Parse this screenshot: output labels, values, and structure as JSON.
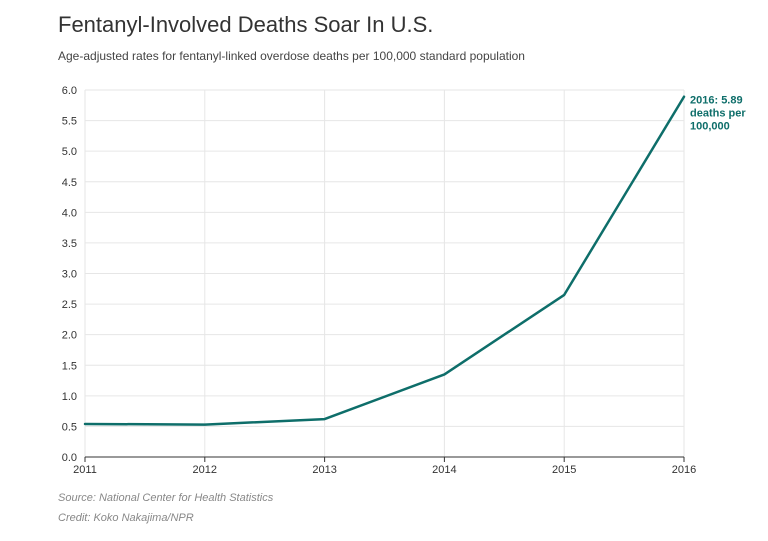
{
  "header": {
    "title": "Fentanyl-Involved Deaths Soar In U.S.",
    "subtitle": "Age-adjusted rates for fentanyl-linked overdose deaths per 100,000 standard population"
  },
  "footer": {
    "source": "Source: National Center for Health Statistics",
    "credit": "Credit: Koko Nakajima/NPR"
  },
  "colors": {
    "line": "#0e6e6a",
    "annotation": "#0e6e6a",
    "grid": "#e6e6e6",
    "axis": "#333333"
  },
  "chart_data": {
    "type": "line",
    "title": "Fentanyl-Involved Deaths Soar In U.S.",
    "subtitle": "Age-adjusted rates for fentanyl-linked overdose deaths per 100,000 standard population",
    "xlabel": "",
    "ylabel": "",
    "x": [
      2011,
      2012,
      2013,
      2014,
      2015,
      2016
    ],
    "series": [
      {
        "values": [
          0.54,
          0.53,
          0.62,
          1.35,
          2.65,
          5.89
        ]
      }
    ],
    "xlim": [
      2011,
      2016
    ],
    "ylim": [
      0,
      6
    ],
    "x_ticks": [
      "2011",
      "2012",
      "2013",
      "2014",
      "2015",
      "2016"
    ],
    "y_ticks": [
      "0.0",
      "0.5",
      "1.0",
      "1.5",
      "2.0",
      "2.5",
      "3.0",
      "3.5",
      "4.0",
      "4.5",
      "5.0",
      "5.5",
      "6.0"
    ],
    "grid": true,
    "annotation": {
      "x": 2016,
      "y": 5.89,
      "lines": [
        "2016: 5.89",
        "deaths per",
        "100,000"
      ]
    }
  }
}
